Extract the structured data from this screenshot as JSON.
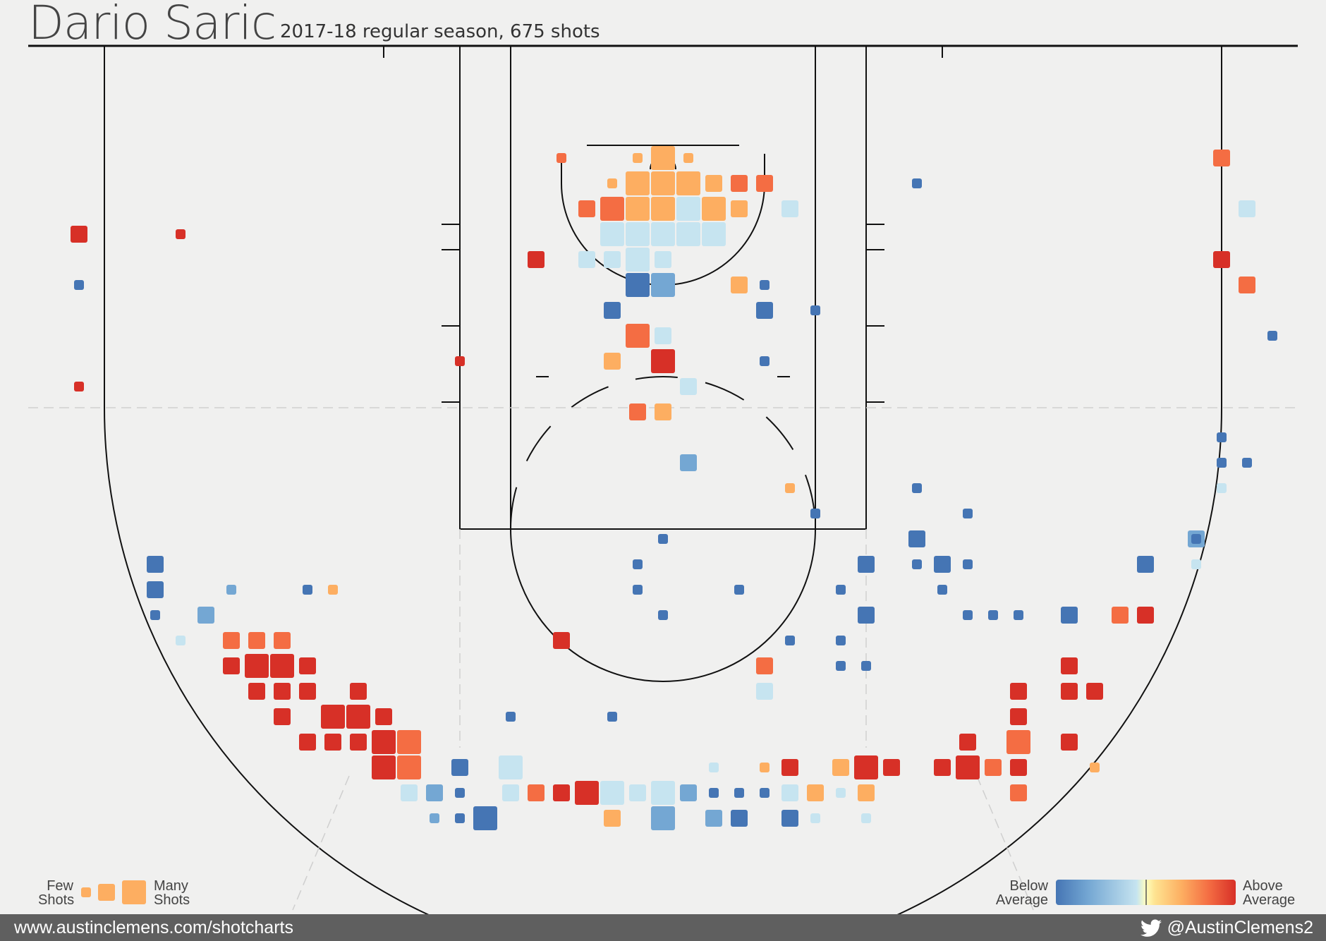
{
  "header": {
    "title": "Dario Saric",
    "subtitle": "2017-18 regular season, 675 shots"
  },
  "legend": {
    "size_low": "Few\nShots",
    "size_high": "Many\nShots",
    "color_low": "Below\nAverage",
    "color_high": "Above\nAverage",
    "size_low_line1": "Few",
    "size_low_line2": "Shots",
    "size_high_line1": "Many",
    "size_high_line2": "Shots",
    "color_low_line1": "Below",
    "color_low_line2": "Average",
    "color_high_line1": "Above",
    "color_high_line2": "Average"
  },
  "footer": {
    "url": "www.austinclemens.com/shotcharts",
    "handle": "@AustinClemens2",
    "icon": "twitter-bird-icon"
  },
  "colors": {
    "background": "#f0f0ef",
    "court_lines": "#111111",
    "footer_bg": "#5f5f5f",
    "scale": [
      "#4575b4",
      "#74a7d3",
      "#c6e4f0",
      "#fee391",
      "#fdae61",
      "#f46d43",
      "#d73027"
    ]
  },
  "chart_data": {
    "type": "heatmap",
    "description_of_encoding": "hexbin-style square shot chart on a half court; square size = shot frequency (1 few to 3 many), color = FG% relative to league average (-3 well below to +3 well above)",
    "x_range": [
      -26,
      26
    ],
    "y_range": [
      -1,
      35
    ],
    "units": "feet from basket (x: left-right, y: toward half court)",
    "legend_placement": "bottom-left (size), bottom-right (color)",
    "points": [
      {
        "x": -1,
        "y": 29,
        "size": 1,
        "color": 1
      },
      {
        "x": 0,
        "y": 29,
        "size": 3,
        "color": 1
      },
      {
        "x": 1,
        "y": 29,
        "size": 1,
        "color": 1
      },
      {
        "x": -2,
        "y": 28,
        "size": 1,
        "color": 1
      },
      {
        "x": -1,
        "y": 28,
        "size": 3,
        "color": 1
      },
      {
        "x": 0,
        "y": 28,
        "size": 3,
        "color": 1
      },
      {
        "x": 1,
        "y": 28,
        "size": 3,
        "color": 1
      },
      {
        "x": 2,
        "y": 28,
        "size": 2,
        "color": 1
      },
      {
        "x": 3,
        "y": 28,
        "size": 2,
        "color": 2
      },
      {
        "x": -3,
        "y": 27,
        "size": 2,
        "color": 2
      },
      {
        "x": -2,
        "y": 27,
        "size": 3,
        "color": 2
      },
      {
        "x": -1,
        "y": 27,
        "size": 3,
        "color": 1
      },
      {
        "x": 0,
        "y": 27,
        "size": 3,
        "color": 1
      },
      {
        "x": 1,
        "y": 27,
        "size": 3,
        "color": -1
      },
      {
        "x": 2,
        "y": 27,
        "size": 3,
        "color": 1
      },
      {
        "x": 3,
        "y": 27,
        "size": 2,
        "color": 1
      },
      {
        "x": -2,
        "y": 26,
        "size": 3,
        "color": -1
      },
      {
        "x": -1,
        "y": 26,
        "size": 3,
        "color": -1
      },
      {
        "x": 0,
        "y": 26,
        "size": 3,
        "color": -1
      },
      {
        "x": 1,
        "y": 26,
        "size": 3,
        "color": -1
      },
      {
        "x": 2,
        "y": 26,
        "size": 3,
        "color": -1
      },
      {
        "x": -3,
        "y": 25,
        "size": 2,
        "color": -1
      },
      {
        "x": -2,
        "y": 25,
        "size": 2,
        "color": -1
      },
      {
        "x": -1,
        "y": 25,
        "size": 3,
        "color": -1
      },
      {
        "x": 0,
        "y": 25,
        "size": 2,
        "color": -1
      },
      {
        "x": -1,
        "y": 24,
        "size": 3,
        "color": -3
      },
      {
        "x": 0,
        "y": 24,
        "size": 3,
        "color": -2
      },
      {
        "x": -2,
        "y": 23,
        "size": 2,
        "color": -3
      },
      {
        "x": -1,
        "y": 22,
        "size": 3,
        "color": 2
      },
      {
        "x": 0,
        "y": 22,
        "size": 2,
        "color": -1
      },
      {
        "x": -2,
        "y": 21,
        "size": 2,
        "color": 1
      },
      {
        "x": 0,
        "y": 21,
        "size": 3,
        "color": 3
      },
      {
        "x": -4,
        "y": 29,
        "size": 1,
        "color": 2
      },
      {
        "x": 4,
        "y": 28,
        "size": 2,
        "color": 2
      },
      {
        "x": 5,
        "y": 27,
        "size": 2,
        "color": -1
      },
      {
        "x": -5,
        "y": 25,
        "size": 2,
        "color": 3
      },
      {
        "x": 3,
        "y": 24,
        "size": 2,
        "color": 1
      },
      {
        "x": 4,
        "y": 24,
        "size": 1,
        "color": -3
      },
      {
        "x": 4,
        "y": 23,
        "size": 2,
        "color": -3
      },
      {
        "x": 6,
        "y": 23,
        "size": 1,
        "color": -3
      },
      {
        "x": 4,
        "y": 21,
        "size": 1,
        "color": -3
      },
      {
        "x": -8,
        "y": 21,
        "size": 1,
        "color": 3
      },
      {
        "x": 1,
        "y": 20,
        "size": 2,
        "color": -1
      },
      {
        "x": -1,
        "y": 19,
        "size": 2,
        "color": 2
      },
      {
        "x": 0,
        "y": 19,
        "size": 2,
        "color": 1
      },
      {
        "x": 1,
        "y": 17,
        "size": 2,
        "color": -2
      },
      {
        "x": 5,
        "y": 16,
        "size": 1,
        "color": 1
      },
      {
        "x": 6,
        "y": 15,
        "size": 1,
        "color": -3
      },
      {
        "x": -23,
        "y": 26,
        "size": 2,
        "color": 3
      },
      {
        "x": -19,
        "y": 26,
        "size": 1,
        "color": 3
      },
      {
        "x": -23,
        "y": 24,
        "size": 1,
        "color": -3
      },
      {
        "x": -23,
        "y": 20,
        "size": 1,
        "color": 3
      },
      {
        "x": 10,
        "y": 28,
        "size": 1,
        "color": -3
      },
      {
        "x": 22,
        "y": 29,
        "size": 2,
        "color": 2
      },
      {
        "x": 23,
        "y": 27,
        "size": 2,
        "color": -1
      },
      {
        "x": 22,
        "y": 25,
        "size": 2,
        "color": 3
      },
      {
        "x": 23,
        "y": 24,
        "size": 2,
        "color": 2
      },
      {
        "x": 24,
        "y": 22,
        "size": 1,
        "color": -3
      },
      {
        "x": 22,
        "y": 18,
        "size": 1,
        "color": -3
      },
      {
        "x": 22,
        "y": 17,
        "size": 1,
        "color": -3
      },
      {
        "x": 23,
        "y": 17,
        "size": 1,
        "color": -3
      },
      {
        "x": 22,
        "y": 16,
        "size": 1,
        "color": -1
      },
      {
        "x": 10,
        "y": 16,
        "size": 1,
        "color": -3
      },
      {
        "x": 12,
        "y": 15,
        "size": 1,
        "color": -3
      },
      {
        "x": 10,
        "y": 14,
        "size": 2,
        "color": -3
      },
      {
        "x": 21,
        "y": 14,
        "size": 2,
        "color": -2
      },
      {
        "x": 21,
        "y": 14,
        "size": 1,
        "color": -3
      },
      {
        "x": 8,
        "y": 13,
        "size": 2,
        "color": -3
      },
      {
        "x": 10,
        "y": 13,
        "size": 1,
        "color": -3
      },
      {
        "x": 11,
        "y": 13,
        "size": 2,
        "color": -3
      },
      {
        "x": 12,
        "y": 13,
        "size": 1,
        "color": -3
      },
      {
        "x": 19,
        "y": 13,
        "size": 2,
        "color": -3
      },
      {
        "x": 21,
        "y": 13,
        "size": 1,
        "color": -1
      },
      {
        "x": 0,
        "y": 14,
        "size": 1,
        "color": -3
      },
      {
        "x": -1,
        "y": 13,
        "size": 1,
        "color": -3
      },
      {
        "x": -1,
        "y": 12,
        "size": 1,
        "color": -3
      },
      {
        "x": 3,
        "y": 12,
        "size": 1,
        "color": -3
      },
      {
        "x": 7,
        "y": 12,
        "size": 1,
        "color": -3
      },
      {
        "x": 11,
        "y": 12,
        "size": 1,
        "color": -3
      },
      {
        "x": 0,
        "y": 11,
        "size": 1,
        "color": -3
      },
      {
        "x": 8,
        "y": 11,
        "size": 2,
        "color": -3
      },
      {
        "x": 12,
        "y": 11,
        "size": 1,
        "color": -3
      },
      {
        "x": 13,
        "y": 11,
        "size": 1,
        "color": -3
      },
      {
        "x": 14,
        "y": 11,
        "size": 1,
        "color": -3
      },
      {
        "x": 16,
        "y": 11,
        "size": 2,
        "color": -3
      },
      {
        "x": 18,
        "y": 11,
        "size": 2,
        "color": 2
      },
      {
        "x": 19,
        "y": 11,
        "size": 2,
        "color": 3
      },
      {
        "x": -4,
        "y": 10,
        "size": 2,
        "color": 3
      },
      {
        "x": 5,
        "y": 10,
        "size": 1,
        "color": -3
      },
      {
        "x": 7,
        "y": 10,
        "size": 1,
        "color": -3
      },
      {
        "x": 4,
        "y": 9,
        "size": 2,
        "color": 2
      },
      {
        "x": 7,
        "y": 9,
        "size": 1,
        "color": -3
      },
      {
        "x": 8,
        "y": 9,
        "size": 1,
        "color": -3
      },
      {
        "x": 16,
        "y": 9,
        "size": 2,
        "color": 3
      },
      {
        "x": 4,
        "y": 8,
        "size": 2,
        "color": -1
      },
      {
        "x": 14,
        "y": 8,
        "size": 2,
        "color": 3
      },
      {
        "x": 16,
        "y": 8,
        "size": 2,
        "color": 3
      },
      {
        "x": 17,
        "y": 8,
        "size": 2,
        "color": 3
      },
      {
        "x": 14,
        "y": 7,
        "size": 2,
        "color": 3
      },
      {
        "x": 12,
        "y": 6,
        "size": 2,
        "color": 3
      },
      {
        "x": 14,
        "y": 6,
        "size": 3,
        "color": 2
      },
      {
        "x": 16,
        "y": 6,
        "size": 2,
        "color": 3
      },
      {
        "x": 11,
        "y": 5,
        "size": 2,
        "color": 3
      },
      {
        "x": 12,
        "y": 5,
        "size": 3,
        "color": 3
      },
      {
        "x": 13,
        "y": 5,
        "size": 2,
        "color": 2
      },
      {
        "x": 14,
        "y": 5,
        "size": 2,
        "color": 3
      },
      {
        "x": 17,
        "y": 5,
        "size": 1,
        "color": 1
      },
      {
        "x": 14,
        "y": 4,
        "size": 2,
        "color": 2
      },
      {
        "x": -20,
        "y": 13,
        "size": 2,
        "color": -3
      },
      {
        "x": -20,
        "y": 12,
        "size": 2,
        "color": -3
      },
      {
        "x": -17,
        "y": 12,
        "size": 1,
        "color": -2
      },
      {
        "x": -14,
        "y": 12,
        "size": 1,
        "color": -3
      },
      {
        "x": -13,
        "y": 12,
        "size": 1,
        "color": 1
      },
      {
        "x": -20,
        "y": 11,
        "size": 1,
        "color": -3
      },
      {
        "x": -18,
        "y": 11,
        "size": 2,
        "color": -2
      },
      {
        "x": -19,
        "y": 10,
        "size": 1,
        "color": -1
      },
      {
        "x": -17,
        "y": 10,
        "size": 2,
        "color": 2
      },
      {
        "x": -16,
        "y": 10,
        "size": 2,
        "color": 2
      },
      {
        "x": -15,
        "y": 10,
        "size": 2,
        "color": 2
      },
      {
        "x": -17,
        "y": 9,
        "size": 2,
        "color": 3
      },
      {
        "x": -16,
        "y": 9,
        "size": 3,
        "color": 3
      },
      {
        "x": -15,
        "y": 9,
        "size": 3,
        "color": 3
      },
      {
        "x": -14,
        "y": 9,
        "size": 2,
        "color": 3
      },
      {
        "x": -16,
        "y": 8,
        "size": 2,
        "color": 3
      },
      {
        "x": -15,
        "y": 8,
        "size": 2,
        "color": 3
      },
      {
        "x": -14,
        "y": 8,
        "size": 2,
        "color": 3
      },
      {
        "x": -12,
        "y": 8,
        "size": 2,
        "color": 3
      },
      {
        "x": -15,
        "y": 7,
        "size": 2,
        "color": 3
      },
      {
        "x": -13,
        "y": 7,
        "size": 3,
        "color": 3
      },
      {
        "x": -12,
        "y": 7,
        "size": 3,
        "color": 3
      },
      {
        "x": -11,
        "y": 7,
        "size": 2,
        "color": 3
      },
      {
        "x": -6,
        "y": 7,
        "size": 1,
        "color": -3
      },
      {
        "x": -2,
        "y": 7,
        "size": 1,
        "color": -3
      },
      {
        "x": -14,
        "y": 6,
        "size": 2,
        "color": 3
      },
      {
        "x": -13,
        "y": 6,
        "size": 2,
        "color": 3
      },
      {
        "x": -12,
        "y": 6,
        "size": 2,
        "color": 3
      },
      {
        "x": -11,
        "y": 6,
        "size": 3,
        "color": 3
      },
      {
        "x": -10,
        "y": 6,
        "size": 3,
        "color": 2
      },
      {
        "x": -11,
        "y": 5,
        "size": 3,
        "color": 3
      },
      {
        "x": -10,
        "y": 5,
        "size": 3,
        "color": 2
      },
      {
        "x": -8,
        "y": 5,
        "size": 2,
        "color": -3
      },
      {
        "x": -6,
        "y": 5,
        "size": 3,
        "color": -1
      },
      {
        "x": 2,
        "y": 5,
        "size": 1,
        "color": -1
      },
      {
        "x": 4,
        "y": 5,
        "size": 1,
        "color": 1
      },
      {
        "x": 5,
        "y": 5,
        "size": 2,
        "color": 3
      },
      {
        "x": 7,
        "y": 5,
        "size": 2,
        "color": 1
      },
      {
        "x": 8,
        "y": 5,
        "size": 3,
        "color": 3
      },
      {
        "x": 9,
        "y": 5,
        "size": 2,
        "color": 3
      },
      {
        "x": -10,
        "y": 4,
        "size": 2,
        "color": -1
      },
      {
        "x": -9,
        "y": 4,
        "size": 2,
        "color": -2
      },
      {
        "x": -8,
        "y": 4,
        "size": 1,
        "color": -3
      },
      {
        "x": -6,
        "y": 4,
        "size": 2,
        "color": -1
      },
      {
        "x": -5,
        "y": 4,
        "size": 2,
        "color": 2
      },
      {
        "x": -4,
        "y": 4,
        "size": 2,
        "color": 3
      },
      {
        "x": -3,
        "y": 4,
        "size": 3,
        "color": 3
      },
      {
        "x": -2,
        "y": 4,
        "size": 3,
        "color": -1
      },
      {
        "x": -1,
        "y": 4,
        "size": 2,
        "color": -1
      },
      {
        "x": 0,
        "y": 4,
        "size": 3,
        "color": -1
      },
      {
        "x": 1,
        "y": 4,
        "size": 2,
        "color": -2
      },
      {
        "x": 2,
        "y": 4,
        "size": 1,
        "color": -3
      },
      {
        "x": 3,
        "y": 4,
        "size": 1,
        "color": -3
      },
      {
        "x": 4,
        "y": 4,
        "size": 1,
        "color": -3
      },
      {
        "x": 5,
        "y": 4,
        "size": 2,
        "color": -1
      },
      {
        "x": 6,
        "y": 4,
        "size": 2,
        "color": 1
      },
      {
        "x": 7,
        "y": 4,
        "size": 1,
        "color": -1
      },
      {
        "x": 8,
        "y": 4,
        "size": 2,
        "color": 1
      },
      {
        "x": -9,
        "y": 3,
        "size": 1,
        "color": -2
      },
      {
        "x": -8,
        "y": 3,
        "size": 1,
        "color": -3
      },
      {
        "x": -7,
        "y": 3,
        "size": 3,
        "color": -3
      },
      {
        "x": -2,
        "y": 3,
        "size": 2,
        "color": 1
      },
      {
        "x": 0,
        "y": 3,
        "size": 3,
        "color": -2
      },
      {
        "x": 2,
        "y": 3,
        "size": 2,
        "color": -2
      },
      {
        "x": 3,
        "y": 3,
        "size": 2,
        "color": -3
      },
      {
        "x": 5,
        "y": 3,
        "size": 2,
        "color": -3
      },
      {
        "x": 6,
        "y": 3,
        "size": 1,
        "color": -1
      },
      {
        "x": 8,
        "y": 3,
        "size": 1,
        "color": -1
      }
    ]
  }
}
